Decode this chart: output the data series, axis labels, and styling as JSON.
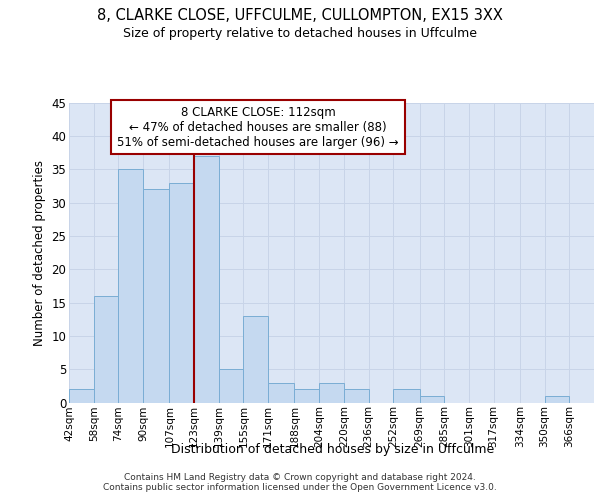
{
  "title1": "8, CLARKE CLOSE, UFFCULME, CULLOMPTON, EX15 3XX",
  "title2": "Size of property relative to detached houses in Uffculme",
  "xlabel": "Distribution of detached houses by size in Uffculme",
  "ylabel": "Number of detached properties",
  "categories": [
    "42sqm",
    "58sqm",
    "74sqm",
    "90sqm",
    "107sqm",
    "123sqm",
    "139sqm",
    "155sqm",
    "171sqm",
    "188sqm",
    "204sqm",
    "220sqm",
    "236sqm",
    "252sqm",
    "269sqm",
    "285sqm",
    "301sqm",
    "317sqm",
    "334sqm",
    "350sqm",
    "366sqm"
  ],
  "values": [
    2,
    16,
    35,
    32,
    33,
    37,
    5,
    13,
    3,
    2,
    3,
    2,
    0,
    2,
    1,
    0,
    0,
    0,
    0,
    1,
    0
  ],
  "bar_color": "#c5d9f0",
  "bar_edge_color": "#7aadd4",
  "vline_x_idx": 5,
  "vline_color": "#990000",
  "annotation_text": "8 CLARKE CLOSE: 112sqm\n← 47% of detached houses are smaller (88)\n51% of semi-detached houses are larger (96) →",
  "annotation_box_color": "#ffffff",
  "annotation_box_edge": "#990000",
  "ylim": [
    0,
    45
  ],
  "yticks": [
    0,
    5,
    10,
    15,
    20,
    25,
    30,
    35,
    40,
    45
  ],
  "grid_color": "#c8d4e8",
  "bg_color": "#dce6f5",
  "footer": "Contains HM Land Registry data © Crown copyright and database right 2024.\nContains public sector information licensed under the Open Government Licence v3.0.",
  "bin_starts": [
    42,
    58,
    74,
    90,
    107,
    123,
    139,
    155,
    171,
    188,
    204,
    220,
    236,
    252,
    269,
    285,
    301,
    317,
    334,
    350,
    366
  ],
  "bin_ends": [
    58,
    74,
    90,
    107,
    123,
    139,
    155,
    171,
    188,
    204,
    220,
    236,
    252,
    269,
    285,
    301,
    317,
    334,
    350,
    366,
    382
  ]
}
